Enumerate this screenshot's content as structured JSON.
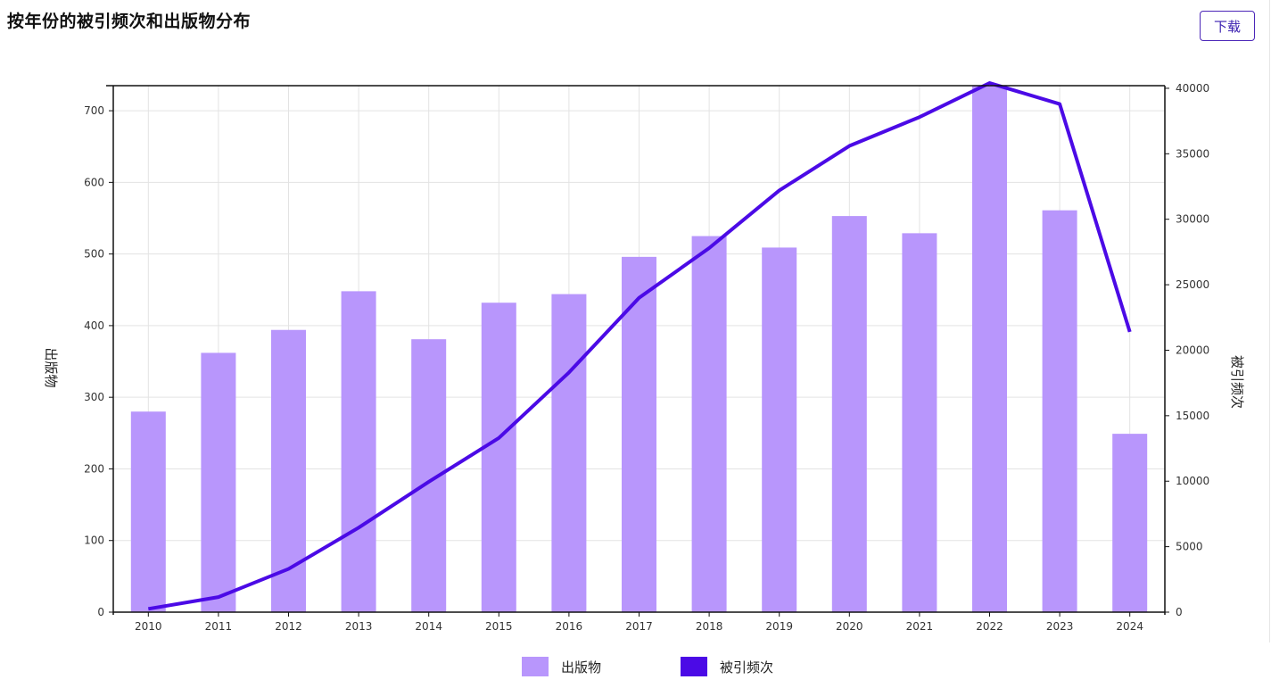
{
  "header": {
    "title": "按年份的被引频次和出版物分布",
    "download_label": "下载"
  },
  "colors": {
    "bar": "#b896fc",
    "line": "#4b0ae6",
    "grid": "#e3e3e3",
    "axis": "#111111"
  },
  "chart_data": {
    "type": "bar",
    "categories": [
      "2010",
      "2011",
      "2012",
      "2013",
      "2014",
      "2015",
      "2016",
      "2017",
      "2018",
      "2019",
      "2020",
      "2021",
      "2022",
      "2023",
      "2024"
    ],
    "series": [
      {
        "name": "出版物",
        "type": "bar",
        "axis": "left",
        "values": [
          280,
          362,
          394,
          448,
          381,
          432,
          444,
          496,
          525,
          509,
          553,
          529,
          740,
          561,
          249
        ]
      },
      {
        "name": "被引频次",
        "type": "line",
        "axis": "right",
        "values": [
          250,
          1150,
          3300,
          6450,
          9950,
          13300,
          18300,
          24000,
          27800,
          32200,
          35600,
          37800,
          40400,
          38800,
          21400
        ]
      }
    ],
    "ylabel_left": "出版物",
    "ylabel_right": "被引频次",
    "ylim_left": [
      0,
      735
    ],
    "ylim_right": [
      0,
      40200
    ],
    "yticks_left": [
      "0",
      "100",
      "200",
      "300",
      "400",
      "500",
      "600",
      "700"
    ],
    "yticks_right": [
      "0",
      "5000",
      "10000",
      "15000",
      "20000",
      "25000",
      "30000",
      "35000",
      "40000"
    ],
    "grid": true,
    "legend_position": "bottom-center"
  }
}
